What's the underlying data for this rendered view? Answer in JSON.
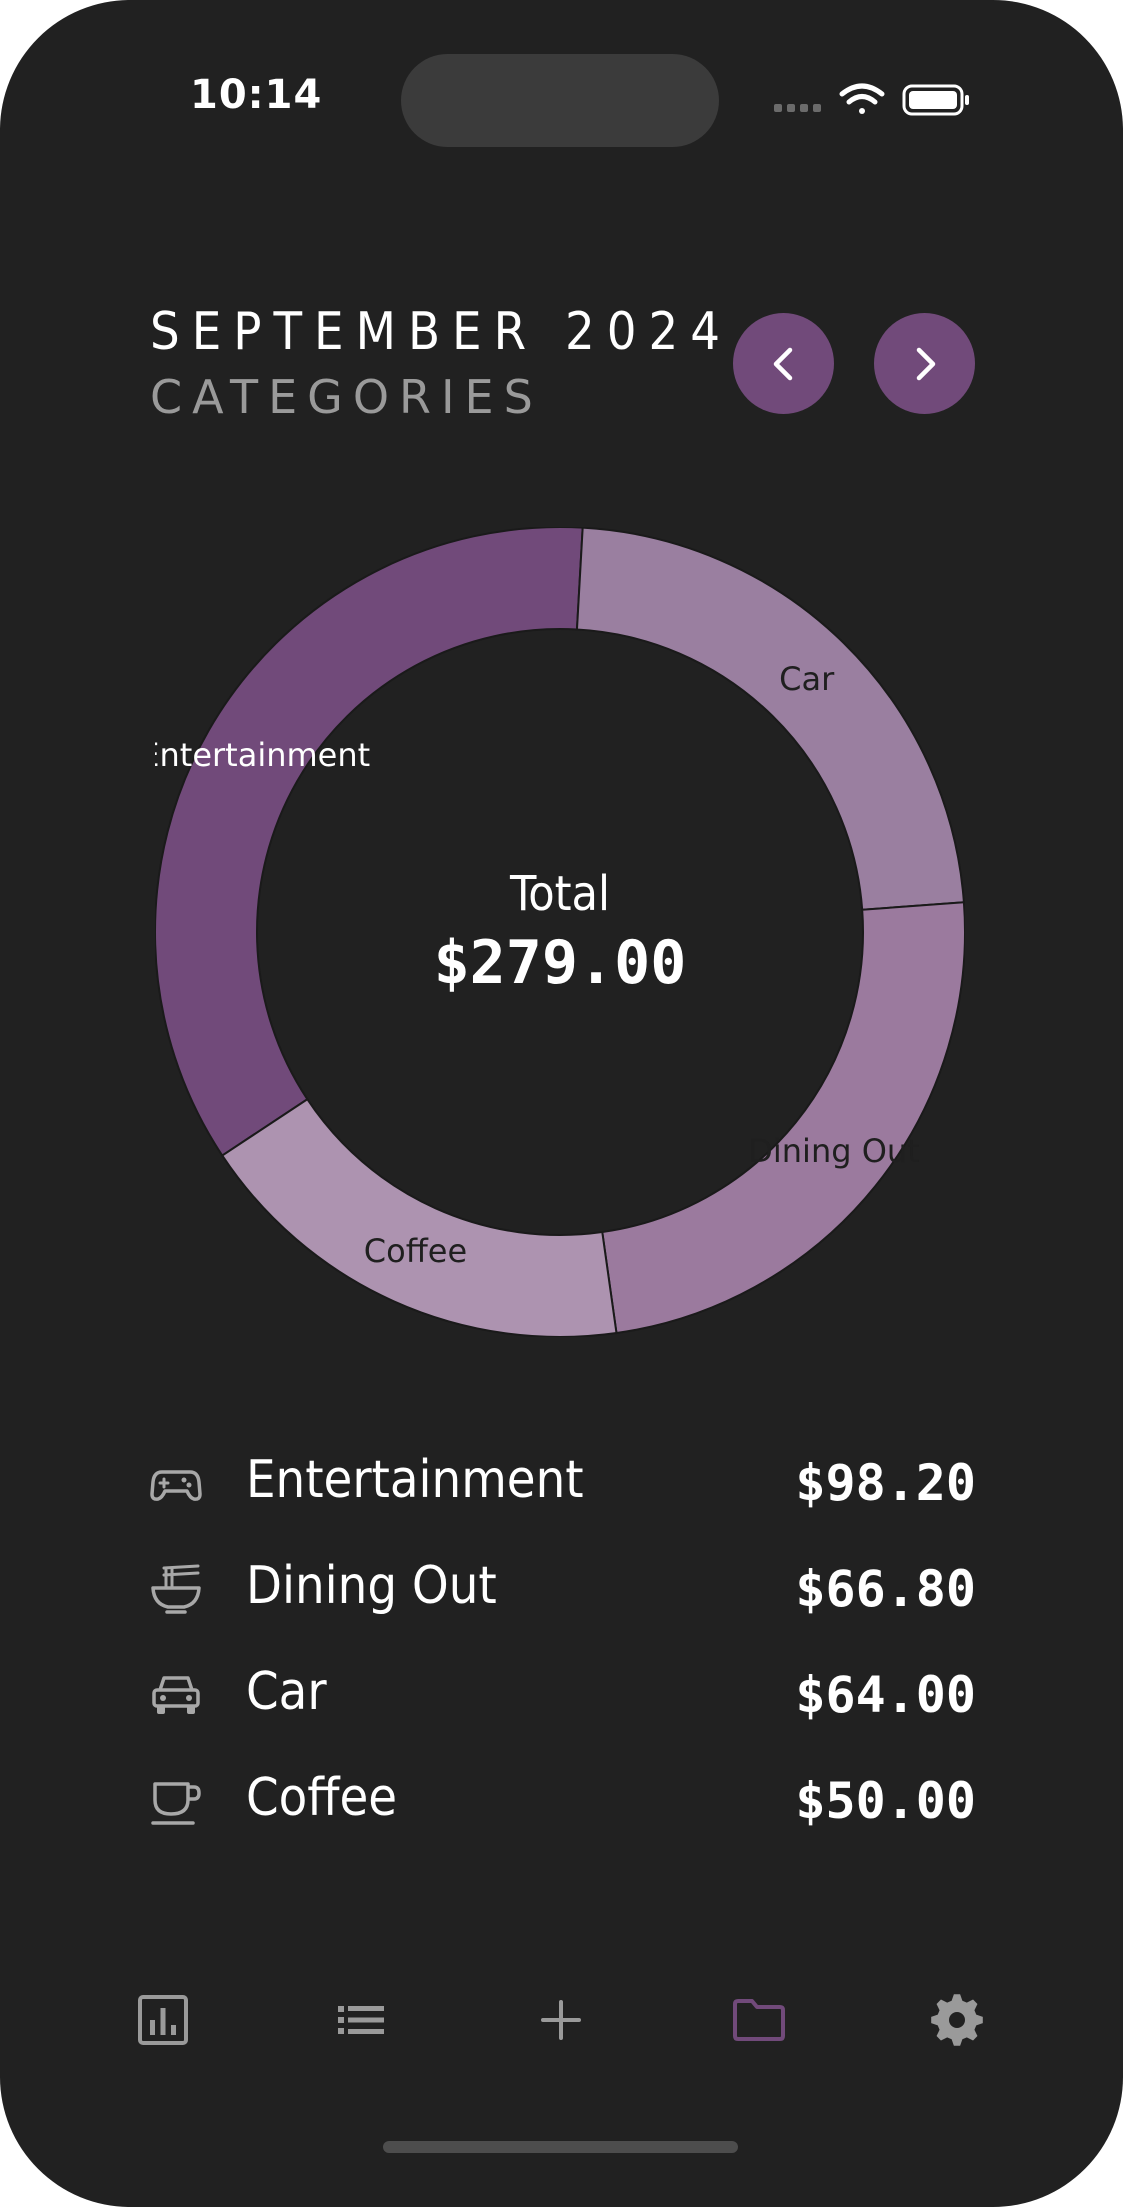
{
  "status_bar": {
    "time": "10:14"
  },
  "header": {
    "month": "SEPTEMBER 2024",
    "subtitle": "CATEGORIES"
  },
  "nav": {
    "prev_icon": "chevron-left-icon",
    "next_icon": "chevron-right-icon"
  },
  "colors": {
    "background": "#212121",
    "accent": "#714a7a",
    "entertainment": "#714a7a",
    "car": "#9a7fa0",
    "dining_out": "#9b7a9e",
    "coffee": "#ad93b0",
    "muted_text": "#9a9a9a"
  },
  "summary": {
    "total_label": "Total",
    "total_value": "$279.00"
  },
  "chart_data": {
    "type": "pie",
    "series": [
      {
        "name": "Entertainment",
        "value": 98.2
      },
      {
        "name": "Car",
        "value": 64.0
      },
      {
        "name": "Dining Out",
        "value": 66.8
      },
      {
        "name": "Coffee",
        "value": 50.0
      }
    ]
  },
  "categories": [
    {
      "name": "Entertainment",
      "amount": "$98.20",
      "icon": "gamepad-icon"
    },
    {
      "name": "Dining Out",
      "amount": "$66.80",
      "icon": "noodle-bowl-icon"
    },
    {
      "name": "Car",
      "amount": "$64.00",
      "icon": "car-icon"
    },
    {
      "name": "Coffee",
      "amount": "$50.00",
      "icon": "coffee-cup-icon"
    }
  ],
  "tab_bar": [
    {
      "icon": "bar-chart-icon",
      "active": false
    },
    {
      "icon": "list-icon",
      "active": false
    },
    {
      "icon": "plus-icon",
      "active": false
    },
    {
      "icon": "folder-icon",
      "active": true
    },
    {
      "icon": "gear-icon",
      "active": false
    }
  ]
}
